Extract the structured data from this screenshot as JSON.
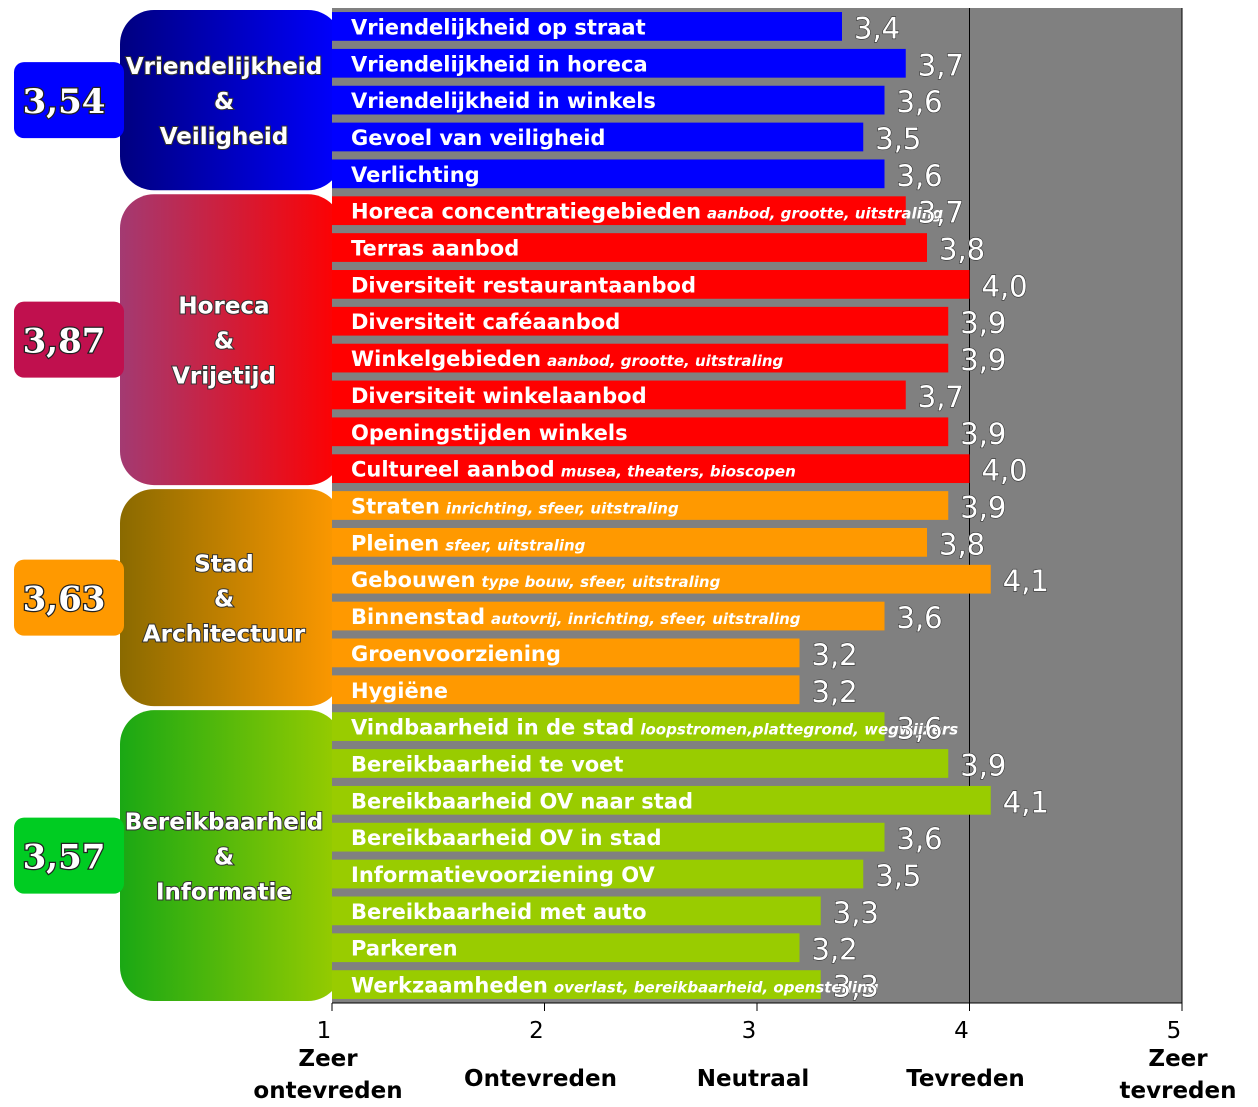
{
  "chart_data": {
    "type": "bar",
    "orientation": "horizontal",
    "xlim": [
      1,
      5
    ],
    "x_ticks": [
      "1",
      "2",
      "3",
      "4",
      "5"
    ],
    "x_tick_captions": [
      [
        "Zeer",
        "ontevreden"
      ],
      [
        "Ontevreden"
      ],
      [
        "Neutraal"
      ],
      [
        "Tevreden"
      ],
      [
        "Zeer",
        "tevreden"
      ]
    ],
    "plot_background": "#808080",
    "groups": [
      {
        "title_lines": [
          "Vriendelijkheid",
          "&",
          "Veiligheid"
        ],
        "score": "3,54",
        "color": "#0000ff",
        "panel_gradient": [
          "#000080",
          "#0000ff"
        ],
        "badge_color": "#0000ff",
        "items": [
          {
            "label": "Vriendelijkheid op straat",
            "note": "",
            "value": 3.4,
            "value_label": "3,4"
          },
          {
            "label": "Vriendelijkheid in horeca",
            "note": "",
            "value": 3.7,
            "value_label": "3,7"
          },
          {
            "label": "Vriendelijkheid in winkels",
            "note": "",
            "value": 3.6,
            "value_label": "3,6"
          },
          {
            "label": "Gevoel van veiligheid",
            "note": "",
            "value": 3.5,
            "value_label": "3,5"
          },
          {
            "label": "Verlichting",
            "note": "",
            "value": 3.6,
            "value_label": "3,6"
          }
        ]
      },
      {
        "title_lines": [
          "Horeca",
          "&",
          "Vrijetijd"
        ],
        "score": "3,87",
        "color": "#ff0000",
        "panel_gradient": [
          "#a33a72",
          "#ff0000"
        ],
        "badge_color": "#c0104e",
        "items": [
          {
            "label": "Horeca concentratiegebieden",
            "note": "aanbod, grootte, uitstraling",
            "value": 3.7,
            "value_label": "3,7"
          },
          {
            "label": "Terras aanbod",
            "note": "",
            "value": 3.8,
            "value_label": "3,8"
          },
          {
            "label": "Diversiteit restaurantaanbod",
            "note": "",
            "value": 4.0,
            "value_label": "4,0"
          },
          {
            "label": "Diversiteit caféaanbod",
            "note": "",
            "value": 3.9,
            "value_label": "3,9"
          },
          {
            "label": "Winkelgebieden",
            "note": "aanbod, grootte, uitstraling",
            "value": 3.9,
            "value_label": "3,9"
          },
          {
            "label": "Diversiteit winkelaanbod",
            "note": "",
            "value": 3.7,
            "value_label": "3,7"
          },
          {
            "label": "Openingstijden winkels",
            "note": "",
            "value": 3.9,
            "value_label": "3,9"
          },
          {
            "label": "Cultureel aanbod",
            "note": "musea, theaters, bioscopen",
            "value": 4.0,
            "value_label": "4,0"
          }
        ]
      },
      {
        "title_lines": [
          "Stad",
          "&",
          "Architectuur"
        ],
        "score": "3,63",
        "color": "#ff9900",
        "panel_gradient": [
          "#8a6a00",
          "#ff9900"
        ],
        "badge_color": "#ff9900",
        "items": [
          {
            "label": "Straten",
            "note": "inrichting, sfeer, uitstraling",
            "value": 3.9,
            "value_label": "3,9"
          },
          {
            "label": "Pleinen",
            "note": "sfeer, uitstraling",
            "value": 3.8,
            "value_label": "3,8"
          },
          {
            "label": "Gebouwen",
            "note": "type bouw, sfeer, uitstraling",
            "value": 4.1,
            "value_label": "4,1"
          },
          {
            "label": "Binnenstad",
            "note": "autovrij, inrichting, sfeer, uitstraling",
            "value": 3.6,
            "value_label": "3,6"
          },
          {
            "label": "Groenvoorziening",
            "note": "",
            "value": 3.2,
            "value_label": "3,2"
          },
          {
            "label": "Hygiëne",
            "note": "",
            "value": 3.2,
            "value_label": "3,2"
          }
        ]
      },
      {
        "title_lines": [
          "Bereikbaarheid",
          "&",
          "Informatie"
        ],
        "score": "3,57",
        "color": "#99cc00",
        "panel_gradient": [
          "#1aa814",
          "#99cc00"
        ],
        "badge_color": "#00cc22",
        "items": [
          {
            "label": "Vindbaarheid in de stad",
            "note": "loopstromen,plattegrond, wegwijzers",
            "value": 3.6,
            "value_label": "3,6"
          },
          {
            "label": "Bereikbaarheid te voet",
            "note": "",
            "value": 3.9,
            "value_label": "3,9"
          },
          {
            "label": "Bereikbaarheid OV naar stad",
            "note": "",
            "value": 4.1,
            "value_label": "4,1"
          },
          {
            "label": "Bereikbaarheid OV in stad",
            "note": "",
            "value": 3.6,
            "value_label": "3,6"
          },
          {
            "label": "Informatievoorziening OV",
            "note": "",
            "value": 3.5,
            "value_label": "3,5"
          },
          {
            "label": "Bereikbaarheid met  auto",
            "note": "",
            "value": 3.3,
            "value_label": "3,3"
          },
          {
            "label": "Parkeren",
            "note": "",
            "value": 3.2,
            "value_label": "3,2"
          },
          {
            "label": "Werkzaamheden",
            "note": "overlast, bereikbaarheid, openstelling",
            "value": 3.3,
            "value_label": "3,3"
          }
        ]
      }
    ]
  }
}
